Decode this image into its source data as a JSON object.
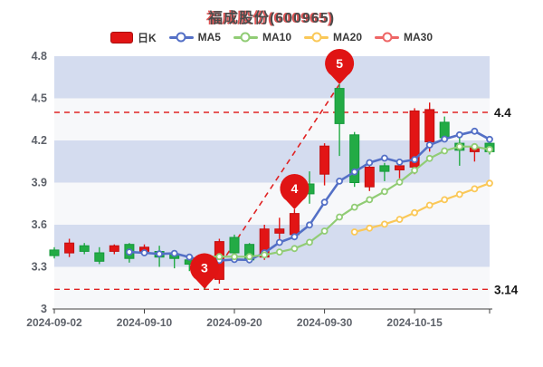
{
  "title": "福成股份(600965)",
  "legend": {
    "items": [
      {
        "label": "日K",
        "type": "rect",
        "color": "#e11414"
      },
      {
        "label": "MA5",
        "type": "line",
        "color": "#5470c6"
      },
      {
        "label": "MA10",
        "type": "line",
        "color": "#91cc75"
      },
      {
        "label": "MA20",
        "type": "line",
        "color": "#fac858"
      },
      {
        "label": "MA30",
        "type": "line",
        "color": "#ee6666"
      }
    ]
  },
  "chart_data": {
    "type": "candlestick",
    "title": "福成股份(600965)",
    "ylim": [
      3.0,
      4.8
    ],
    "band_step": 0.3,
    "grid": "striped-bands",
    "y_ticks": [
      {
        "v": 4.8,
        "label": "4.8"
      },
      {
        "v": 4.5,
        "label": "4.5"
      },
      {
        "v": 4.2,
        "label": "4.2"
      },
      {
        "v": 3.9,
        "label": "3.9"
      },
      {
        "v": 3.6,
        "label": "3.6"
      },
      {
        "v": 3.3,
        "label": "3.3"
      },
      {
        "v": 3.0,
        "label": "3"
      }
    ],
    "x_ticks": [
      {
        "i": 0,
        "label": "2024-09-02"
      },
      {
        "i": 6,
        "label": "2024-09-10"
      },
      {
        "i": 12,
        "label": "2024-09-20"
      },
      {
        "i": 18,
        "label": "2024-09-30"
      },
      {
        "i": 24,
        "label": "2024-10-15"
      }
    ],
    "candles": [
      {
        "d": "2024-09-02",
        "o": 3.42,
        "h": 3.44,
        "l": 3.36,
        "c": 3.38
      },
      {
        "d": "2024-09-03",
        "o": 3.4,
        "h": 3.5,
        "l": 3.37,
        "c": 3.47
      },
      {
        "d": "2024-09-04",
        "o": 3.45,
        "h": 3.47,
        "l": 3.39,
        "c": 3.41
      },
      {
        "d": "2024-09-05",
        "o": 3.4,
        "h": 3.44,
        "l": 3.32,
        "c": 3.34
      },
      {
        "d": "2024-09-06",
        "o": 3.41,
        "h": 3.46,
        "l": 3.39,
        "c": 3.45
      },
      {
        "d": "2024-09-09",
        "o": 3.46,
        "h": 3.47,
        "l": 3.33,
        "c": 3.36
      },
      {
        "d": "2024-09-10",
        "o": 3.41,
        "h": 3.46,
        "l": 3.4,
        "c": 3.44
      },
      {
        "d": "2024-09-11",
        "o": 3.41,
        "h": 3.45,
        "l": 3.3,
        "c": 3.37
      },
      {
        "d": "2024-09-12",
        "o": 3.39,
        "h": 3.41,
        "l": 3.29,
        "c": 3.36
      },
      {
        "d": "2024-09-13",
        "o": 3.35,
        "h": 3.38,
        "l": 3.27,
        "c": 3.32
      },
      {
        "d": "2024-09-18",
        "o": 3.31,
        "h": 3.32,
        "l": 3.14,
        "c": 3.2
      },
      {
        "d": "2024-09-19",
        "o": 3.21,
        "h": 3.5,
        "l": 3.18,
        "c": 3.48
      },
      {
        "d": "2024-09-20",
        "o": 3.51,
        "h": 3.53,
        "l": 3.35,
        "c": 3.4
      },
      {
        "d": "2024-09-23",
        "o": 3.46,
        "h": 3.47,
        "l": 3.33,
        "c": 3.35
      },
      {
        "d": "2024-09-24",
        "o": 3.37,
        "h": 3.6,
        "l": 3.35,
        "c": 3.57
      },
      {
        "d": "2024-09-25",
        "o": 3.54,
        "h": 3.65,
        "l": 3.48,
        "c": 3.57
      },
      {
        "d": "2024-09-26",
        "o": 3.53,
        "h": 3.71,
        "l": 3.51,
        "c": 3.68
      },
      {
        "d": "2024-09-27",
        "o": 3.89,
        "h": 3.98,
        "l": 3.75,
        "c": 3.82
      },
      {
        "d": "2024-09-30",
        "o": 3.96,
        "h": 4.18,
        "l": 3.88,
        "c": 4.16
      },
      {
        "d": "2024-10-08",
        "o": 4.57,
        "h": 4.6,
        "l": 4.09,
        "c": 4.32
      },
      {
        "d": "2024-10-09",
        "o": 4.24,
        "h": 4.26,
        "l": 3.87,
        "c": 3.9
      },
      {
        "d": "2024-10-10",
        "o": 3.87,
        "h": 4.04,
        "l": 3.84,
        "c": 4.01
      },
      {
        "d": "2024-10-11",
        "o": 4.02,
        "h": 4.04,
        "l": 3.91,
        "c": 3.98
      },
      {
        "d": "2024-10-14",
        "o": 3.99,
        "h": 4.04,
        "l": 3.93,
        "c": 4.02
      },
      {
        "d": "2024-10-15",
        "o": 4.01,
        "h": 4.43,
        "l": 3.96,
        "c": 4.41
      },
      {
        "d": "2024-10-16",
        "o": 4.19,
        "h": 4.47,
        "l": 4.12,
        "c": 4.42
      },
      {
        "d": "2024-10-17",
        "o": 4.33,
        "h": 4.37,
        "l": 4.21,
        "c": 4.22
      },
      {
        "d": "2024-10-18",
        "o": 4.18,
        "h": 4.22,
        "l": 4.02,
        "c": 4.13
      },
      {
        "d": "2024-10-21",
        "o": 4.12,
        "h": 4.18,
        "l": 4.05,
        "c": 4.15
      },
      {
        "d": "2024-10-22",
        "o": 4.18,
        "h": 4.2,
        "l": 4.1,
        "c": 4.12
      }
    ],
    "moving_averages": [
      {
        "name": "MA5",
        "period": 5,
        "color": "#5470c6",
        "width": 2.6
      },
      {
        "name": "MA10",
        "period": 10,
        "color": "#91cc75",
        "width": 2.2
      },
      {
        "name": "MA20",
        "period": 20,
        "color": "#fac858",
        "width": 2.2
      },
      {
        "name": "MA30",
        "period": 30,
        "color": "#ee6666",
        "width": 2.2
      }
    ],
    "ref_lines": [
      {
        "value": 4.4,
        "label": "4.4"
      },
      {
        "value": 3.14,
        "label": "3.14"
      }
    ],
    "markers": [
      {
        "label": "3",
        "index": 10,
        "tip_price": 3.145
      },
      {
        "label": "4",
        "index": 16,
        "tip_price": 3.71
      },
      {
        "label": "5",
        "index": 19,
        "tip_price": 4.6
      }
    ],
    "trendline": {
      "from_index": 10,
      "from_price": 3.145,
      "to_index": 19,
      "to_price": 4.6
    },
    "colors": {
      "up": "#e21515",
      "up_border": "#c21010",
      "down": "#23ab45",
      "down_border": "#13993a",
      "band": "#d4dcef",
      "band_alt": "#f7f8fa",
      "axis_label": "#5d6169",
      "axis_line": "#404040",
      "ref_line": "#e02222",
      "ref_label": "#141414",
      "marker_pin": "#e01414",
      "marker_text": "#ffffff",
      "trend_line": "#e02222"
    }
  }
}
